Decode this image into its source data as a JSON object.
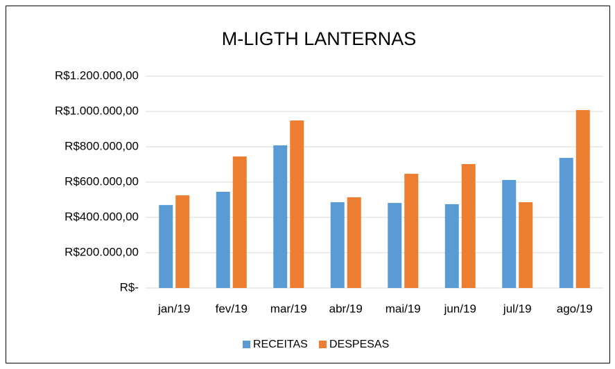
{
  "chart_data": {
    "type": "bar",
    "title": "M-LIGTH LANTERNAS",
    "categories": [
      "jan/19",
      "fev/19",
      "mar/19",
      "abr/19",
      "mai/19",
      "jun/19",
      "jul/19",
      "ago/19"
    ],
    "series": [
      {
        "name": "RECEITAS",
        "color": "#5b9bd5",
        "values": [
          470000,
          545000,
          808000,
          486000,
          482000,
          475000,
          612000,
          737000
        ]
      },
      {
        "name": "DESPESAS",
        "color": "#ed7d31",
        "values": [
          525000,
          745000,
          949000,
          514000,
          647000,
          702000,
          486000,
          1008000
        ]
      }
    ],
    "ylim": [
      0,
      1200000
    ],
    "yticks": [
      {
        "value": 0,
        "label": "R$-"
      },
      {
        "value": 200000,
        "label": "R$200.000,00"
      },
      {
        "value": 400000,
        "label": "R$400.000,00"
      },
      {
        "value": 600000,
        "label": "R$600.000,00"
      },
      {
        "value": 800000,
        "label": "R$800.000,00"
      },
      {
        "value": 1000000,
        "label": "R$1.000.000,00"
      },
      {
        "value": 1200000,
        "label": "R$1.200.000,00"
      }
    ],
    "grid": true,
    "legend": "bottom"
  }
}
